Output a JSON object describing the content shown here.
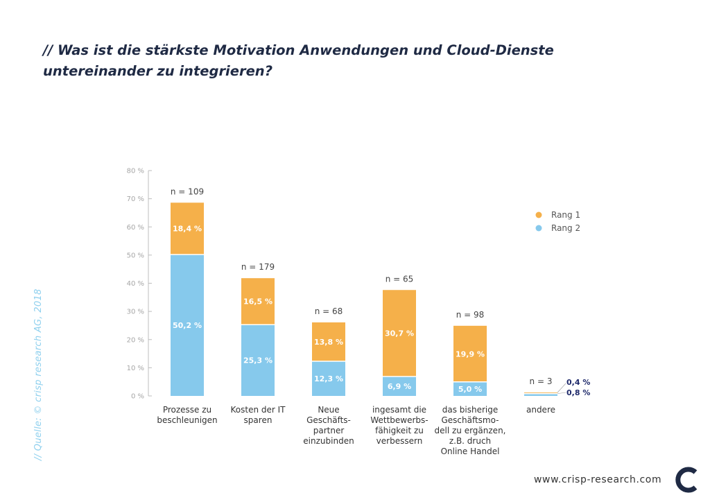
{
  "title": "// Was ist die stärkste Motivation Anwendungen und Cloud-Dienste untereinander zu integrieren?",
  "source_note": "// Quelle: © crisp research AG, 2018",
  "footer_url": "www.crisp-research.com",
  "colors": {
    "rang1": "#f5b04a",
    "rang2": "#86c9ec",
    "axis": "#bdbdbd",
    "title": "#1f2a44"
  },
  "logo_icon": "crisp-c-logo-icon",
  "chart_data": {
    "type": "bar",
    "stacked": true,
    "categories": [
      [
        "Prozesse zu",
        "beschleunigen"
      ],
      [
        "Kosten der IT",
        "sparen"
      ],
      [
        "Neue",
        "Geschäfts-",
        "partner",
        "einzubinden"
      ],
      [
        "ingesamt die",
        "Wettbewerbs-",
        "fähigkeit zu",
        "verbessern"
      ],
      [
        "das bisherige",
        "Geschäftsmo-",
        "dell zu ergänzen,",
        "z.B. druch",
        "Online Handel"
      ],
      [
        "andere"
      ]
    ],
    "n_labels": [
      "n = 109",
      "n = 179",
      "n = 68",
      "n = 65",
      "n = 98",
      "n = 3"
    ],
    "series": [
      {
        "name": "Rang 2",
        "values": [
          50.2,
          25.3,
          12.3,
          6.9,
          5.0,
          0.8
        ],
        "labels": [
          "50,2 %",
          "25,3 %",
          "12,3 %",
          "6,9 %",
          "5,0 %",
          "0,8 %"
        ]
      },
      {
        "name": "Rang 1",
        "values": [
          18.4,
          16.5,
          13.8,
          30.7,
          19.9,
          0.4
        ],
        "labels": [
          "18,4 %",
          "16,5 %",
          "13,8 %",
          "30,7 %",
          "19,9 %",
          "0,4 %"
        ]
      }
    ],
    "ylim": [
      0,
      80
    ],
    "yticks": [
      "0 %",
      "10 %",
      "20 %",
      "30 %",
      "40 %",
      "50 %",
      "60 %",
      "70 %",
      "80 %"
    ],
    "legend": {
      "position": "right",
      "entries": [
        "Rang 1",
        "Rang 2"
      ]
    },
    "grid": false
  }
}
